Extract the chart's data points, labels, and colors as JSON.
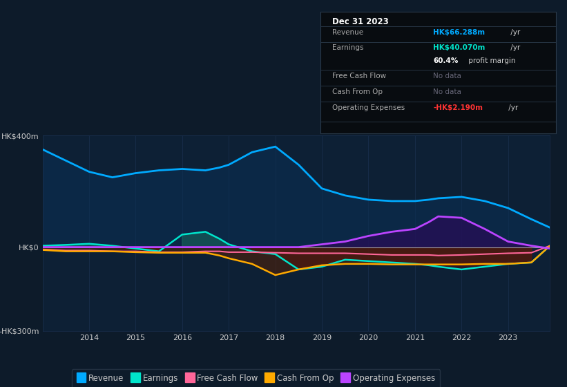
{
  "bg_color": "#0d1b2a",
  "plot_bg": "#0d2035",
  "title_date": "Dec 31 2023",
  "ylim": [
    -300,
    400
  ],
  "yticks": [
    -300,
    0,
    400
  ],
  "ytick_labels": [
    "-HK$300m",
    "HK$0",
    "HK$400m"
  ],
  "years": [
    2013.0,
    2013.5,
    2014.0,
    2014.5,
    2015.0,
    2015.5,
    2016.0,
    2016.5,
    2016.8,
    2017.0,
    2017.5,
    2018.0,
    2018.5,
    2019.0,
    2019.5,
    2020.0,
    2020.5,
    2021.0,
    2021.3,
    2021.5,
    2022.0,
    2022.5,
    2023.0,
    2023.5,
    2023.9
  ],
  "revenue": [
    350,
    310,
    270,
    250,
    265,
    275,
    280,
    275,
    285,
    295,
    340,
    360,
    295,
    210,
    185,
    170,
    165,
    165,
    170,
    175,
    180,
    165,
    140,
    100,
    70
  ],
  "earnings": [
    5,
    8,
    12,
    5,
    -5,
    -15,
    45,
    55,
    30,
    10,
    -15,
    -25,
    -80,
    -70,
    -45,
    -50,
    -55,
    -60,
    -65,
    -70,
    -80,
    -70,
    -60,
    -55,
    5
  ],
  "free_cash_flow": [
    -8,
    -12,
    -12,
    -15,
    -15,
    -18,
    -18,
    -15,
    -15,
    -18,
    -18,
    -20,
    -22,
    -22,
    -22,
    -25,
    -28,
    -28,
    -28,
    -30,
    -28,
    -25,
    -22,
    -20,
    5
  ],
  "cash_from_op": [
    -10,
    -15,
    -15,
    -15,
    -18,
    -20,
    -20,
    -20,
    -30,
    -40,
    -60,
    -100,
    -80,
    -65,
    -60,
    -60,
    -62,
    -62,
    -62,
    -62,
    -62,
    -60,
    -60,
    -55,
    5
  ],
  "operating_expenses": [
    0,
    0,
    0,
    0,
    0,
    0,
    0,
    0,
    0,
    0,
    0,
    0,
    0,
    10,
    20,
    40,
    55,
    65,
    90,
    110,
    105,
    65,
    20,
    5,
    -5
  ],
  "revenue_color": "#00aaff",
  "revenue_fill": "#0a3055",
  "earnings_color": "#00e5cc",
  "earnings_fill_pos": "#1a7060",
  "earnings_fill_neg": "#3a1020",
  "free_cash_flow_color": "#ff6699",
  "cash_from_op_color": "#ffaa00",
  "cash_from_op_fill": "#5c2000",
  "operating_expenses_color": "#bb44ff",
  "operating_expenses_fill": "#2a0a5a",
  "zero_line_color": "#999999",
  "grid_color": "#1a3050",
  "text_color": "#cccccc",
  "legend_items": [
    {
      "label": "Revenue",
      "color": "#00aaff"
    },
    {
      "label": "Earnings",
      "color": "#00e5cc"
    },
    {
      "label": "Free Cash Flow",
      "color": "#ff6699"
    },
    {
      "label": "Cash From Op",
      "color": "#ffaa00"
    },
    {
      "label": "Operating Expenses",
      "color": "#bb44ff"
    }
  ],
  "info_revenue_color": "#00aaff",
  "info_earnings_color": "#00e5cc",
  "info_opex_color": "#ff3333"
}
